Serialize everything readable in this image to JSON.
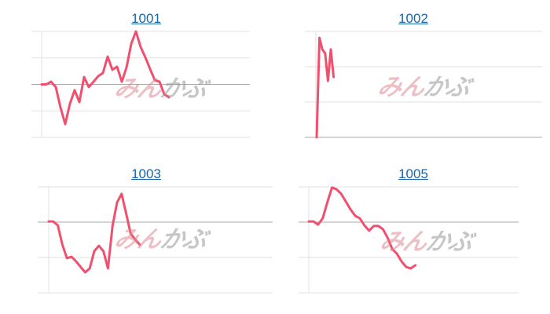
{
  "watermark": {
    "part1": "みん",
    "part2": "かぶ"
  },
  "colors": {
    "line": "#f0506e",
    "grid": "#e2e2e2",
    "baseline": "#aaaaaa",
    "title": "#1a64a8"
  },
  "chart_data": [
    {
      "type": "line",
      "title": "1001",
      "ylim": [
        0,
        4
      ],
      "baseline": 2,
      "grid": true,
      "values": [
        2.0,
        2.0,
        2.1,
        1.9,
        1.13,
        0.5,
        1.27,
        1.78,
        1.33,
        2.28,
        1.9,
        2.1,
        2.31,
        2.43,
        3.05,
        2.55,
        2.67,
        2.1,
        2.64,
        3.53,
        4.0,
        3.41,
        3.02,
        2.58,
        2.16,
        2.1,
        1.63,
        1.51
      ]
    },
    {
      "type": "line",
      "title": "1002",
      "ylim": [
        0,
        3
      ],
      "baseline": 0,
      "grid": true,
      "values": [
        0,
        2.82,
        2.49,
        2.38,
        1.6,
        2.49,
        1.71
      ]
    },
    {
      "type": "line",
      "title": "1003",
      "ylim": [
        0,
        3
      ],
      "baseline": 2,
      "grid": true,
      "values": [
        2.02,
        2.02,
        1.91,
        1.36,
        0.98,
        1.02,
        0.89,
        0.73,
        0.58,
        0.69,
        1.18,
        1.33,
        1.18,
        0.69,
        1.89,
        2.56,
        2.8,
        2.24,
        1.67,
        1.51,
        1.36
      ]
    },
    {
      "type": "line",
      "title": "1005",
      "ylim": [
        0,
        3
      ],
      "baseline": 2,
      "grid": true,
      "values": [
        2.02,
        2.02,
        1.93,
        2.11,
        2.56,
        2.98,
        2.93,
        2.8,
        2.58,
        2.36,
        2.18,
        2.11,
        1.91,
        1.76,
        1.89,
        1.89,
        1.8,
        1.56,
        1.24,
        1.11,
        0.89,
        0.73,
        0.69,
        0.78
      ]
    }
  ]
}
